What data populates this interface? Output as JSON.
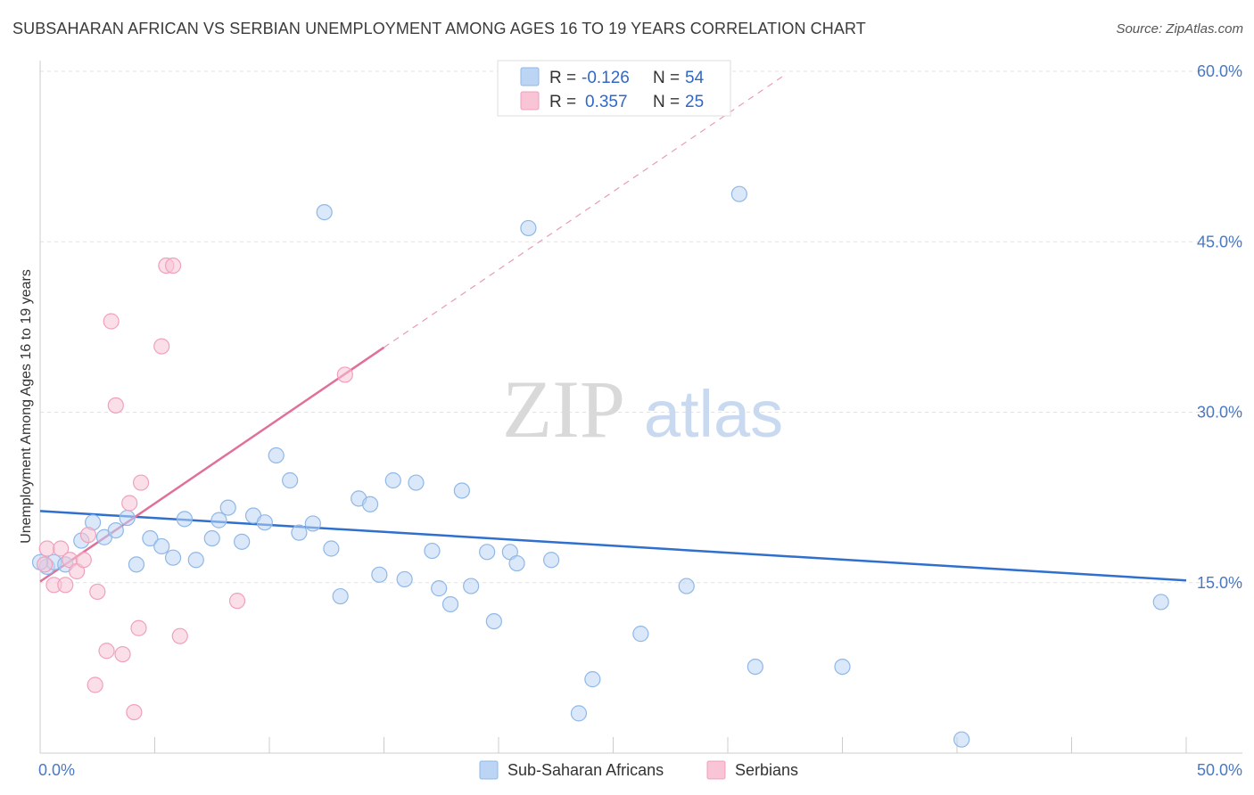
{
  "title": "SUBSAHARAN AFRICAN VS SERBIAN UNEMPLOYMENT AMONG AGES 16 TO 19 YEARS CORRELATION CHART",
  "source": "Source: ZipAtlas.com",
  "watermark": {
    "zip": "ZIP",
    "atlas": "atlas"
  },
  "chart_data": {
    "type": "scatter",
    "title": "SUBSAHARAN AFRICAN VS SERBIAN UNEMPLOYMENT AMONG AGES 16 TO 19 YEARS CORRELATION CHART",
    "xlabel": "",
    "ylabel": "Unemployment Among Ages 16 to 19 years",
    "xlim": [
      0,
      50
    ],
    "ylim": [
      0,
      60
    ],
    "x_tick_labels": [
      {
        "value": 0,
        "label": "0.0%"
      },
      {
        "value": 50,
        "label": "50.0%"
      }
    ],
    "y_tick_labels": [
      {
        "value": 15,
        "label": "15.0%"
      },
      {
        "value": 30,
        "label": "30.0%"
      },
      {
        "value": 45,
        "label": "45.0%"
      },
      {
        "value": 60,
        "label": "60.0%"
      }
    ],
    "legend": [
      {
        "name": "Sub-Saharan Africans",
        "r_label": "R =",
        "r": "-0.126",
        "n_label": "N =",
        "n": "54",
        "color": "#8fb8e8",
        "fill": "#bcd5f4"
      },
      {
        "name": "Serbians",
        "r_label": "R =",
        "r": "0.357",
        "n_label": "N =",
        "n": "25",
        "color": "#f0a0bc",
        "fill": "#f8c4d6"
      }
    ],
    "series": [
      {
        "name": "Sub-Saharan Africans",
        "color": "#8fb8e8",
        "points": [
          [
            0.3,
            16.4
          ],
          [
            0.6,
            16.8
          ],
          [
            1.1,
            16.6
          ],
          [
            1.8,
            18.7
          ],
          [
            2.3,
            20.3
          ],
          [
            2.8,
            19.0
          ],
          [
            3.3,
            19.6
          ],
          [
            3.8,
            20.7
          ],
          [
            4.2,
            16.6
          ],
          [
            4.8,
            18.9
          ],
          [
            5.3,
            18.2
          ],
          [
            5.8,
            17.2
          ],
          [
            6.3,
            20.6
          ],
          [
            6.8,
            17.0
          ],
          [
            7.5,
            18.9
          ],
          [
            7.8,
            20.5
          ],
          [
            8.2,
            21.6
          ],
          [
            8.8,
            18.6
          ],
          [
            9.3,
            20.9
          ],
          [
            9.8,
            20.3
          ],
          [
            10.3,
            26.2
          ],
          [
            10.9,
            24.0
          ],
          [
            11.3,
            19.4
          ],
          [
            11.9,
            20.2
          ],
          [
            12.4,
            47.6
          ],
          [
            12.7,
            18.0
          ],
          [
            13.1,
            13.8
          ],
          [
            13.9,
            22.4
          ],
          [
            14.4,
            21.9
          ],
          [
            14.8,
            15.7
          ],
          [
            15.4,
            24.0
          ],
          [
            15.9,
            15.3
          ],
          [
            16.4,
            23.8
          ],
          [
            17.1,
            17.8
          ],
          [
            17.4,
            14.5
          ],
          [
            17.9,
            13.1
          ],
          [
            18.4,
            23.1
          ],
          [
            18.8,
            14.7
          ],
          [
            19.5,
            17.7
          ],
          [
            19.8,
            11.6
          ],
          [
            20.5,
            17.7
          ],
          [
            20.8,
            16.7
          ],
          [
            21.3,
            46.2
          ],
          [
            22.3,
            17.0
          ],
          [
            23.5,
            3.5
          ],
          [
            24.1,
            6.5
          ],
          [
            26.2,
            10.5
          ],
          [
            28.2,
            14.7
          ],
          [
            30.5,
            49.2
          ],
          [
            31.2,
            7.6
          ],
          [
            35.0,
            7.6
          ],
          [
            40.2,
            1.2
          ],
          [
            48.9,
            13.3
          ],
          [
            0.0,
            16.8
          ]
        ]
      },
      {
        "name": "Serbians",
        "color": "#f0a0bc",
        "points": [
          [
            0.3,
            18.0
          ],
          [
            0.6,
            14.8
          ],
          [
            0.9,
            18.0
          ],
          [
            1.1,
            14.8
          ],
          [
            1.3,
            17.0
          ],
          [
            1.6,
            16.0
          ],
          [
            1.9,
            17.0
          ],
          [
            2.1,
            19.2
          ],
          [
            2.5,
            14.2
          ],
          [
            2.9,
            9.0
          ],
          [
            2.4,
            6.0
          ],
          [
            3.1,
            38.0
          ],
          [
            3.3,
            30.6
          ],
          [
            3.6,
            8.7
          ],
          [
            3.9,
            22.0
          ],
          [
            4.1,
            3.6
          ],
          [
            4.3,
            11.0
          ],
          [
            4.4,
            23.8
          ],
          [
            5.3,
            35.8
          ],
          [
            5.5,
            42.9
          ],
          [
            5.8,
            42.9
          ],
          [
            6.1,
            10.3
          ],
          [
            8.6,
            13.4
          ],
          [
            13.3,
            33.3
          ],
          [
            0.2,
            16.6
          ]
        ]
      }
    ],
    "trendlines": [
      {
        "series": "Sub-Saharan Africans",
        "color": "#2f6fce",
        "x1": 0,
        "y1": 21.3,
        "x2": 50,
        "y2": 15.2,
        "style": "solid"
      },
      {
        "series": "Serbians",
        "color": "#e0709a",
        "x1": 0,
        "y1": 15.1,
        "x2": 15,
        "y2": 35.7,
        "style": "solid"
      },
      {
        "series": "Serbians",
        "color": "#e89ab6",
        "x1": 15,
        "y1": 35.7,
        "x2": 32.5,
        "y2": 59.7,
        "style": "dashed"
      }
    ],
    "grid": true
  }
}
